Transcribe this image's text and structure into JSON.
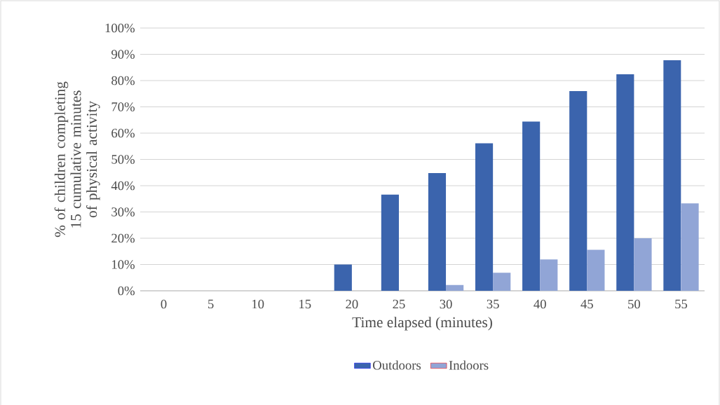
{
  "chart_data": {
    "type": "bar",
    "xlabel": "Time elapsed (minutes)",
    "ylabel": "% of children completing 15 cumulative minutes of physical activity",
    "categories": [
      "0",
      "5",
      "10",
      "15",
      "20",
      "25",
      "30",
      "35",
      "40",
      "45",
      "50",
      "55"
    ],
    "series": [
      {
        "name": "Outdoors",
        "color": "#3b64ad",
        "values": [
          0,
          0,
          0,
          0,
          10,
          36.6,
          44.8,
          56.1,
          64.4,
          76.0,
          82.4,
          87.8
        ]
      },
      {
        "name": "Indoors",
        "color": "#91a5d6",
        "values": [
          0,
          0,
          0,
          0,
          0,
          0,
          2.2,
          6.9,
          11.9,
          15.6,
          20,
          33.3
        ]
      }
    ],
    "ylim": [
      0,
      100
    ],
    "yticks": [
      {
        "value": 0,
        "label": "0%"
      },
      {
        "value": 10,
        "label": "10%"
      },
      {
        "value": 20,
        "label": "20%"
      },
      {
        "value": 30,
        "label": "30%"
      },
      {
        "value": 40,
        "label": "40%"
      },
      {
        "value": 50,
        "label": "50%"
      },
      {
        "value": 60,
        "label": "60%"
      },
      {
        "value": 70,
        "label": "70%"
      },
      {
        "value": 80,
        "label": "80%"
      },
      {
        "value": 90,
        "label": "90%"
      },
      {
        "value": 100,
        "label": "100%"
      }
    ],
    "grid": "y",
    "legend": "bottom"
  }
}
